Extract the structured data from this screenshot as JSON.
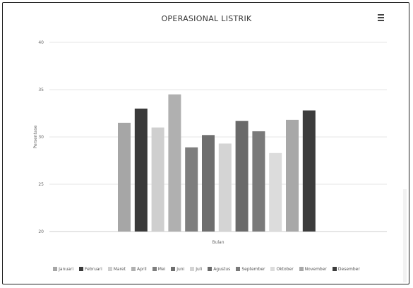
{
  "chart_data": {
    "type": "bar",
    "title": "OPERASIONAL LISTRIK",
    "xlabel": "Bulan",
    "ylabel": "Persentase",
    "y_ticks": [
      "20",
      "25",
      "30",
      "35",
      "40"
    ],
    "ylim": [
      20,
      40
    ],
    "grid": true,
    "legend_position": "bottom",
    "series": [
      {
        "name": "Januari",
        "value": 31.5,
        "color": "#a6a6a6"
      },
      {
        "name": "Februari",
        "value": 33.0,
        "color": "#3a3a3a"
      },
      {
        "name": "Maret",
        "value": 31.0,
        "color": "#cfcfcf"
      },
      {
        "name": "April",
        "value": 34.5,
        "color": "#b0b0b0"
      },
      {
        "name": "Mei",
        "value": 28.9,
        "color": "#7e7e7e"
      },
      {
        "name": "Juni",
        "value": 30.2,
        "color": "#6e6e6e"
      },
      {
        "name": "Juli",
        "value": 29.3,
        "color": "#d4d4d4"
      },
      {
        "name": "Agustus",
        "value": 31.7,
        "color": "#6a6a6a"
      },
      {
        "name": "September",
        "value": 30.6,
        "color": "#7a7a7a"
      },
      {
        "name": "Oktober",
        "value": 28.3,
        "color": "#dcdcdc"
      },
      {
        "name": "November",
        "value": 31.8,
        "color": "#a8a8a8"
      },
      {
        "name": "Desember",
        "value": 32.8,
        "color": "#3c3c3c"
      }
    ]
  }
}
